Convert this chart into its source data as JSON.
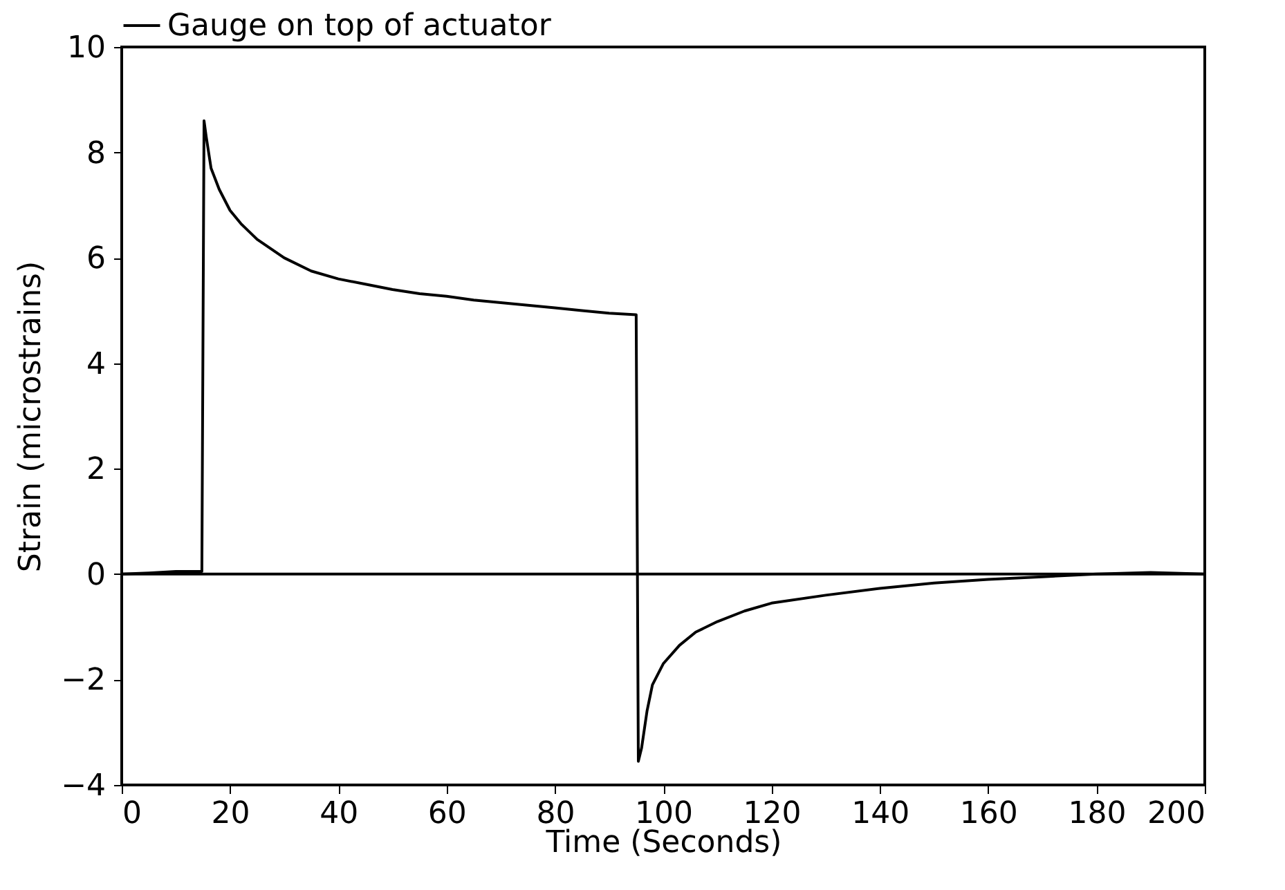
{
  "chart_data": {
    "type": "line",
    "xlabel": "Time (Seconds)",
    "ylabel": "Strain (microstrains)",
    "xlim": [
      0,
      200
    ],
    "xticks": [
      0,
      20,
      40,
      60,
      80,
      100,
      120,
      140,
      160,
      180,
      200
    ],
    "ylim": [
      -4,
      10
    ],
    "yticks": [
      -4,
      -2,
      0,
      2,
      4,
      6,
      8,
      10
    ],
    "grid": false,
    "legend": "top",
    "ref_lines": [
      {
        "axis": "y",
        "value": 0,
        "color": "#000000"
      }
    ],
    "series": [
      {
        "name": "Gauge on top of actuator",
        "color": "#000000",
        "x": [
          0,
          5,
          10,
          14.8,
          15.2,
          15.6,
          16.5,
          18,
          20,
          22,
          25,
          30,
          35,
          40,
          45,
          50,
          55,
          60,
          65,
          70,
          75,
          80,
          85,
          90,
          95,
          95.4,
          96,
          97,
          98,
          100,
          103,
          106,
          110,
          115,
          120,
          130,
          140,
          150,
          160,
          170,
          180,
          190,
          200
        ],
        "values": [
          0,
          0.02,
          0.05,
          0.05,
          8.6,
          8.3,
          7.7,
          7.3,
          6.9,
          6.65,
          6.35,
          6.0,
          5.75,
          5.6,
          5.5,
          5.4,
          5.32,
          5.27,
          5.2,
          5.15,
          5.1,
          5.05,
          5.0,
          4.95,
          4.92,
          -3.55,
          -3.3,
          -2.6,
          -2.1,
          -1.7,
          -1.35,
          -1.1,
          -0.9,
          -0.7,
          -0.55,
          -0.4,
          -0.27,
          -0.17,
          -0.1,
          -0.05,
          0,
          0.03,
          0
        ]
      }
    ]
  }
}
